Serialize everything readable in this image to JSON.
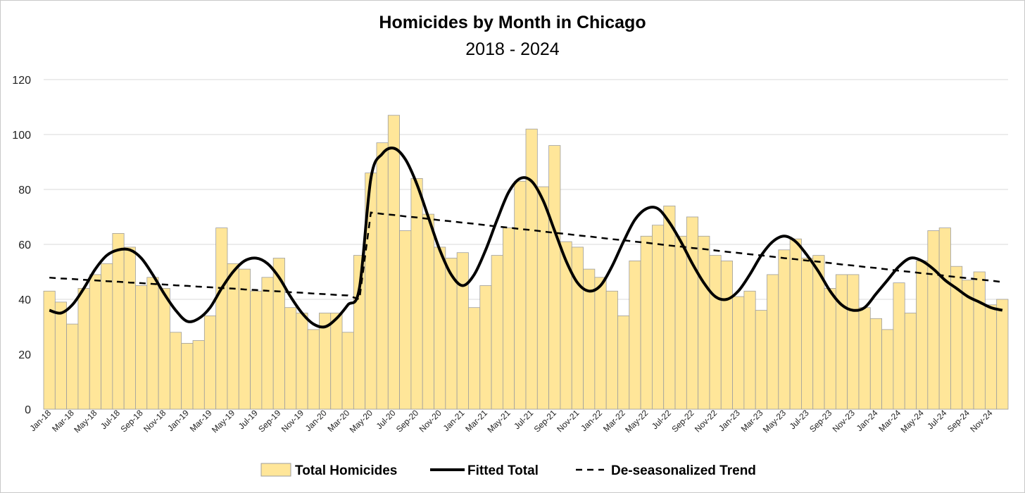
{
  "chart_data": {
    "type": "bar",
    "title": "Homicides by Month in Chicago",
    "subtitle": "2018 - 2024",
    "ylim": [
      0,
      120
    ],
    "yticks": [
      0,
      20,
      40,
      60,
      80,
      100,
      120
    ],
    "grid": true,
    "legend_position": "bottom",
    "colors": {
      "bar_fill": "#FFE699",
      "bar_stroke": "#9E9E9E",
      "fitted": "#000000",
      "trend": "#000000",
      "grid": "#D9D9D9"
    },
    "x_tick_labels": [
      "Jan-18",
      "Mar-18",
      "May-18",
      "Jul-18",
      "Sep-18",
      "Nov-18",
      "Jan-19",
      "Mar-19",
      "May-19",
      "Jul-19",
      "Sep-19",
      "Nov-19",
      "Jan-20",
      "Mar-20",
      "May-20",
      "Jul-20",
      "Sep-20",
      "Nov-20",
      "Jan-21",
      "Mar-21",
      "May-21",
      "Jul-21",
      "Sep-21",
      "Nov-21",
      "Jan-22",
      "Mar-22",
      "May-22",
      "Jul-22",
      "Sep-22",
      "Nov-22",
      "Jan-23",
      "Mar-23",
      "May-23",
      "Jul-23",
      "Sep-23",
      "Nov-23",
      "Jan-24",
      "Mar-24",
      "May-24",
      "Jul-24",
      "Sep-24",
      "Nov-24"
    ],
    "series": [
      {
        "name": "Total Homicides",
        "kind": "bar",
        "values": [
          43,
          39,
          31,
          44,
          49,
          53,
          64,
          59,
          45,
          48,
          44,
          28,
          24,
          25,
          34,
          66,
          53,
          51,
          43,
          48,
          55,
          37,
          35,
          29,
          35,
          35,
          28,
          56,
          86,
          97,
          107,
          65,
          84,
          71,
          59,
          55,
          57,
          37,
          45,
          56,
          66,
          83,
          102,
          81,
          96,
          61,
          59,
          51,
          48,
          43,
          34,
          54,
          63,
          67,
          74,
          63,
          70,
          63,
          56,
          54,
          41,
          43,
          36,
          49,
          58,
          62,
          55,
          56,
          44,
          49,
          49,
          37,
          33,
          29,
          46,
          35,
          54,
          65,
          66,
          52,
          47,
          50,
          38,
          40
        ]
      },
      {
        "name": "Fitted Total",
        "kind": "line",
        "values": [
          36,
          35,
          38,
          44,
          51,
          56,
          58,
          58,
          55,
          49,
          42,
          36,
          32,
          33,
          37,
          44,
          50,
          54,
          55,
          53,
          48,
          41,
          35,
          31,
          30,
          33,
          38,
          44,
          84,
          93,
          95,
          91,
          82,
          70,
          58,
          49,
          45,
          49,
          58,
          69,
          79,
          84,
          83,
          76,
          65,
          54,
          46,
          43,
          45,
          52,
          61,
          69,
          73,
          73,
          68,
          61,
          53,
          46,
          41,
          40,
          43,
          49,
          56,
          61,
          63,
          61,
          56,
          50,
          43,
          38,
          36,
          37,
          42,
          47,
          52,
          55,
          54,
          51,
          47,
          44,
          41,
          39,
          37,
          36
        ]
      },
      {
        "name": "De-seasonalized Trend",
        "kind": "line",
        "values": [
          47.9,
          47.6,
          47.4,
          47.1,
          46.9,
          46.6,
          46.4,
          46.1,
          45.9,
          45.6,
          45.4,
          45.1,
          44.9,
          44.6,
          44.4,
          44.1,
          43.9,
          43.6,
          43.4,
          43.1,
          42.9,
          42.6,
          42.4,
          42.1,
          41.9,
          41.6,
          41.4,
          40.0,
          71.6,
          71.1,
          70.7,
          70.2,
          69.8,
          69.3,
          68.8,
          68.4,
          67.9,
          67.5,
          67.0,
          66.5,
          66.1,
          65.6,
          65.2,
          64.7,
          64.2,
          63.8,
          63.3,
          62.9,
          62.4,
          61.9,
          61.5,
          61.0,
          60.6,
          60.1,
          59.6,
          59.2,
          58.7,
          58.3,
          57.8,
          57.3,
          56.9,
          56.4,
          56.0,
          55.5,
          55.0,
          54.6,
          54.1,
          53.7,
          53.2,
          52.7,
          52.3,
          51.8,
          51.4,
          50.9,
          50.4,
          50.0,
          49.5,
          49.1,
          48.6,
          48.1,
          47.7,
          47.2,
          46.8,
          46.3
        ]
      }
    ]
  }
}
